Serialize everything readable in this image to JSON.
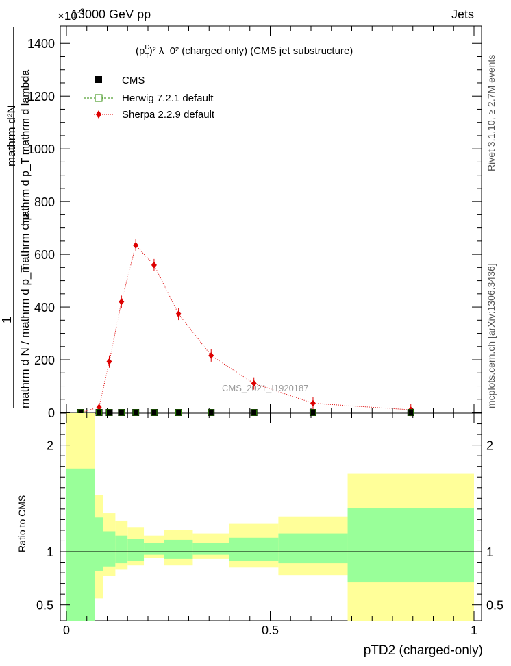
{
  "header": {
    "energy_label": "13000 GeV pp",
    "exponent_label": "×10",
    "exponent_value": "-3",
    "process_label": "Jets",
    "plot_title_base": "(p",
    "plot_title_sup": "D",
    "plot_title_sub": "T",
    "plot_title_rest": ")² λ_0² (charged only) (CMS jet substructure)",
    "watermark": "CMS_2021_I1920187"
  },
  "side_text": {
    "rivet": "Rivet 3.1.10, ≥ 2.7M events",
    "mcplots": "mcplots.cern.ch [arXiv:1306.3436]"
  },
  "main_ylabel": {
    "numerator": "mathrm d²N",
    "numerator_sub": "mathrm d p_T mathrm d lambda",
    "fraction_one": "1",
    "denominator": "mathrm d N / mathrm d p_T",
    "denominator_tail": "mathrm d p"
  },
  "legend": [
    {
      "label": "CMS",
      "marker": "filled-square",
      "color": "#000000"
    },
    {
      "label": "Herwig 7.2.1 default",
      "marker": "open-square",
      "color": "#2a8a00"
    },
    {
      "label": "Sherpa 2.2.9 default",
      "marker": "diamond",
      "color": "#dd0000"
    }
  ],
  "ratio_ylabel": "Ratio to CMS",
  "xlabel": "pTD2 (charged-only)",
  "chart_data": {
    "type": "line",
    "main": {
      "xlim": [
        0,
        1
      ],
      "ylim": [
        0,
        1450
      ],
      "y_ticks": [
        0,
        200,
        400,
        600,
        800,
        1000,
        1200,
        1400
      ],
      "y_tick_labels": [
        "0",
        "200",
        "400",
        "600",
        "800",
        "1000",
        "1200",
        "1400"
      ],
      "bin_edges": [
        0,
        0.07,
        0.09,
        0.12,
        0.15,
        0.19,
        0.24,
        0.31,
        0.4,
        0.52,
        0.69,
        1.0
      ],
      "series": [
        {
          "name": "CMS",
          "x": [
            0.035,
            0.08,
            0.105,
            0.135,
            0.17,
            0.215,
            0.275,
            0.355,
            0.46,
            0.605,
            0.845
          ],
          "y": [
            0,
            0,
            0,
            0,
            0,
            0,
            0,
            0,
            0,
            0,
            0
          ]
        },
        {
          "name": "Herwig 7.2.1 default",
          "x": [
            0.035,
            0.08,
            0.105,
            0.135,
            0.17,
            0.215,
            0.275,
            0.355,
            0.46,
            0.605,
            0.845
          ],
          "y": [
            0,
            0,
            0,
            0,
            0,
            0,
            0,
            0,
            0,
            0,
            0
          ]
        },
        {
          "name": "Sherpa 2.2.9 default",
          "x": [
            0.035,
            0.08,
            0.105,
            0.135,
            0.17,
            0.215,
            0.275,
            0.355,
            0.46,
            0.605,
            0.845
          ],
          "y": [
            0,
            20,
            193,
            420,
            634,
            559,
            374,
            216,
            110,
            35,
            10
          ]
        }
      ]
    },
    "ratio": {
      "xlim": [
        0,
        1
      ],
      "ylim": [
        0.35,
        2.3
      ],
      "y_ticks": [
        0.5,
        1,
        2
      ],
      "y_tick_labels": [
        "0.5",
        "1",
        "2"
      ],
      "x_ticks": [
        0,
        0.5,
        1
      ],
      "x_tick_labels": [
        "0",
        "0.5",
        "1"
      ],
      "bands": [
        {
          "x0": 0.0,
          "x1": 0.07,
          "y_lo": 0.35,
          "y_hi": 2.3,
          "g_lo": 0.35,
          "g_hi": 1.78
        },
        {
          "x0": 0.07,
          "x1": 0.09,
          "y_lo": 0.56,
          "y_hi": 1.53,
          "g_lo": 0.82,
          "g_hi": 1.32
        },
        {
          "x0": 0.09,
          "x1": 0.12,
          "y_lo": 0.77,
          "y_hi": 1.36,
          "g_lo": 0.86,
          "g_hi": 1.19
        },
        {
          "x0": 0.12,
          "x1": 0.15,
          "y_lo": 0.83,
          "y_hi": 1.29,
          "g_lo": 0.89,
          "g_hi": 1.15
        },
        {
          "x0": 0.15,
          "x1": 0.19,
          "y_lo": 0.87,
          "y_hi": 1.23,
          "g_lo": 0.91,
          "g_hi": 1.12
        },
        {
          "x0": 0.19,
          "x1": 0.24,
          "y_lo": 0.94,
          "y_hi": 1.15,
          "g_lo": 0.97,
          "g_hi": 1.08
        },
        {
          "x0": 0.24,
          "x1": 0.24,
          "y_lo": 0.94,
          "y_hi": 1.15,
          "g_lo": 0.97,
          "g_hi": 1.08
        },
        {
          "x0": 0.24,
          "x1": 0.31,
          "y_lo": 0.87,
          "y_hi": 1.2,
          "g_lo": 0.93,
          "g_hi": 1.11
        },
        {
          "x0": 0.31,
          "x1": 0.4,
          "y_lo": 0.93,
          "y_hi": 1.17,
          "g_lo": 0.97,
          "g_hi": 1.08
        },
        {
          "x0": 0.4,
          "x1": 0.52,
          "y_lo": 0.85,
          "y_hi": 1.26,
          "g_lo": 0.91,
          "g_hi": 1.13
        },
        {
          "x0": 0.52,
          "x1": 0.69,
          "y_lo": 0.78,
          "y_hi": 1.33,
          "g_lo": 0.89,
          "g_hi": 1.17
        },
        {
          "x0": 0.69,
          "x1": 1.0,
          "y_lo": 0.35,
          "y_hi": 1.73,
          "g_lo": 0.71,
          "g_hi": 1.41
        }
      ]
    },
    "colors": {
      "band_outer": "#ffff99",
      "band_inner": "#99ff99",
      "cms": "#000000",
      "herwig": "#2a8a00",
      "sherpa": "#dd0000"
    }
  }
}
